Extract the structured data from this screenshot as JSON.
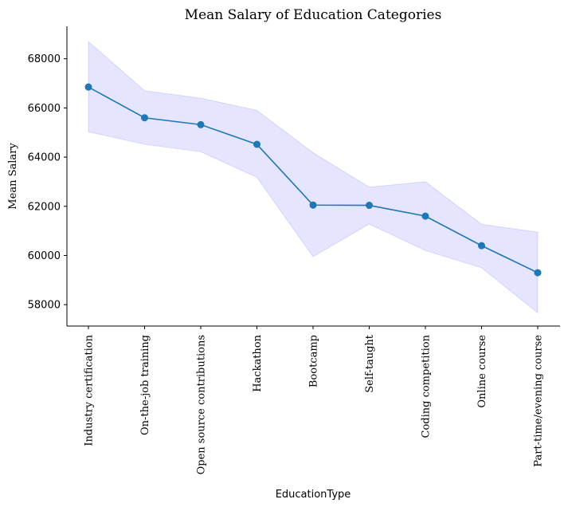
{
  "chart_data": {
    "type": "line",
    "title": "Mean Salary of Education Categories",
    "xlabel": "EducationType",
    "ylabel": "Mean Salary",
    "categories": [
      "Industry certification",
      "On-the-job training",
      "Open source contributions",
      "Hackathon",
      "Bootcamp",
      "Self-taught",
      "Coding competition",
      "Online course",
      "Part-time/evening course"
    ],
    "series": [
      {
        "values": [
          66850,
          65600,
          65320,
          64520,
          62050,
          62040,
          61600,
          60400,
          59300
        ],
        "color": "#1f77b4"
      }
    ],
    "band": {
      "lower": [
        65030,
        64520,
        64220,
        63180,
        59950,
        61280,
        60200,
        59500,
        57670
      ],
      "upper": [
        68700,
        66700,
        66400,
        65900,
        64180,
        62780,
        63000,
        61270,
        60950
      ],
      "color": "#0000ff",
      "opacity": 0.1
    },
    "yticks": [
      58000,
      60000,
      62000,
      64000,
      66000,
      68000
    ],
    "ylim": [
      57130,
      69320
    ],
    "grid": false,
    "legend": false
  }
}
